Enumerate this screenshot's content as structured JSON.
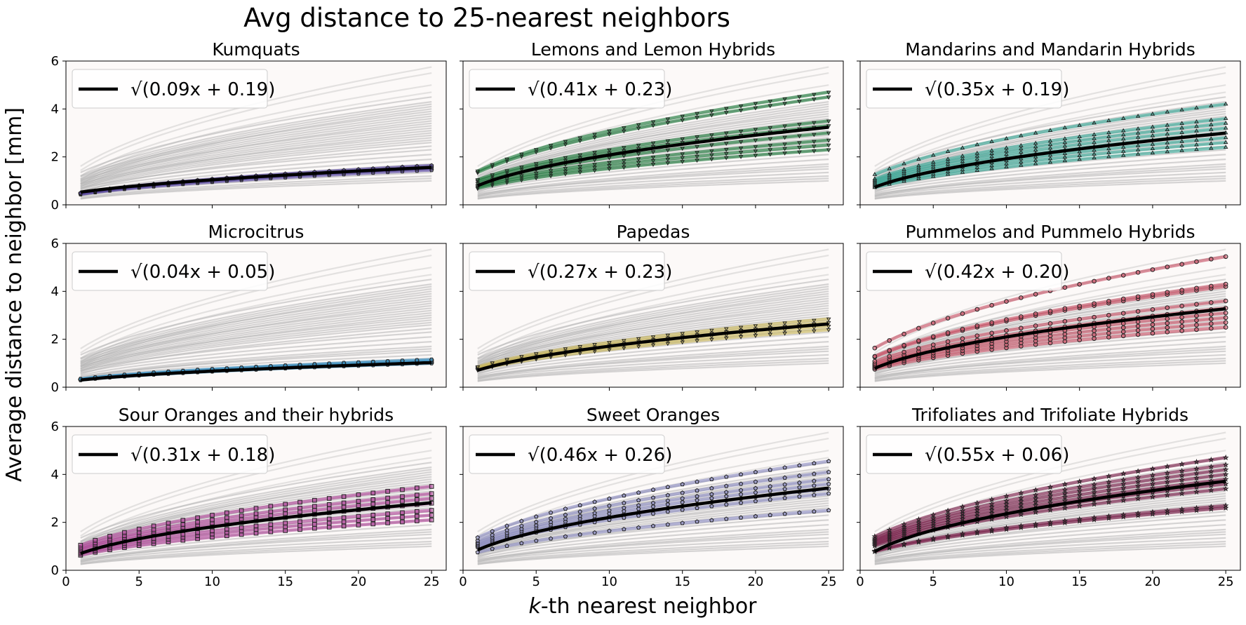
{
  "title": "Avg distance to 25-nearest neighbors",
  "xlabel_var": "k",
  "xlabel_rest": "-th nearest neighbor",
  "ylabel": "Average distance to neighbor [mm]",
  "chart_data": {
    "type": "line",
    "title": "Avg distance to 25-nearest neighbors",
    "xlabel": "k-th nearest neighbor",
    "ylabel": "Average distance to neighbor [mm]",
    "xlim": [
      0,
      26
    ],
    "ylim": [
      0,
      6
    ],
    "xticks": [
      0,
      5,
      10,
      15,
      20,
      25
    ],
    "yticks": [
      0,
      2,
      4,
      6
    ],
    "x": [
      1,
      25
    ],
    "legend_position": "upper-left",
    "panels": [
      {
        "title": "Kumquats",
        "legend": "√(0.09x + 0.19)",
        "a": 0.09,
        "b": 0.19,
        "color": "#5b4aa0",
        "marker": "pentagon",
        "series_end_values": [
          1.45,
          1.52,
          1.58,
          1.64
        ]
      },
      {
        "title": "Lemons and Lemon Hybrids",
        "legend": "√(0.41x + 0.23)",
        "a": 0.41,
        "b": 0.23,
        "color": "#1f7a3c",
        "marker": "triangle-down",
        "series_end_values": [
          2.3,
          2.5,
          2.7,
          3.0,
          3.3,
          3.5,
          4.5,
          4.7
        ]
      },
      {
        "title": "Mandarins and Mandarin Hybrids",
        "legend": "√(0.35x + 0.19)",
        "a": 0.35,
        "b": 0.19,
        "color": "#3aa896",
        "marker": "triangle-up",
        "series_end_values": [
          2.4,
          2.6,
          2.8,
          3.0,
          3.2,
          3.4,
          3.6,
          4.2
        ]
      },
      {
        "title": "Microcitrus",
        "legend": "√(0.04x + 0.05)",
        "a": 0.04,
        "b": 0.05,
        "color": "#3a8fc0",
        "marker": "hexagon",
        "series_end_values": [
          1.0,
          1.05,
          1.1,
          1.15
        ]
      },
      {
        "title": "Papedas",
        "legend": "√(0.27x + 0.23)",
        "a": 0.27,
        "b": 0.23,
        "color": "#c9b75a",
        "marker": "triangle-down",
        "series_end_values": [
          2.4,
          2.55,
          2.7,
          2.85
        ]
      },
      {
        "title": "Pummelos and Pummelo Hybrids",
        "legend": "√(0.42x + 0.20)",
        "a": 0.42,
        "b": 0.2,
        "color": "#c85468",
        "marker": "circle",
        "series_end_values": [
          2.5,
          2.7,
          2.9,
          3.1,
          3.3,
          3.6,
          4.2,
          4.3,
          5.45
        ]
      },
      {
        "title": "Sour Oranges and their hybrids",
        "legend": "√(0.31x + 0.18)",
        "a": 0.31,
        "b": 0.18,
        "color": "#b0489a",
        "marker": "square",
        "series_end_values": [
          2.1,
          2.3,
          2.5,
          2.8,
          3.0,
          3.2,
          3.5
        ]
      },
      {
        "title": "Sweet Oranges",
        "legend": "√(0.46x + 0.26)",
        "a": 0.46,
        "b": 0.26,
        "color": "#8e8ec2",
        "marker": "pentagon",
        "series_end_values": [
          2.5,
          3.2,
          3.4,
          3.6,
          3.8,
          4.1,
          4.55
        ]
      },
      {
        "title": "Trifoliates and Trifoliate Hybrids",
        "legend": "√(0.55x + 0.06)",
        "a": 0.55,
        "b": 0.06,
        "color": "#7a1f4a",
        "marker": "star",
        "series_end_values": [
          2.6,
          2.7,
          3.4,
          3.6,
          3.8,
          4.0,
          4.2,
          4.4,
          4.7
        ]
      }
    ],
    "background_series_end_values": [
      1.0,
      1.1,
      1.2,
      1.35,
      1.5,
      1.6,
      1.7,
      1.9,
      2.1,
      2.3,
      2.45,
      2.6,
      2.7,
      2.8,
      2.9,
      3.0,
      3.1,
      3.2,
      3.3,
      3.4,
      3.5,
      3.6,
      3.7,
      3.8,
      3.9,
      4.0,
      4.1,
      4.2,
      4.3,
      4.5,
      4.7,
      5.0,
      5.5,
      5.75
    ]
  }
}
